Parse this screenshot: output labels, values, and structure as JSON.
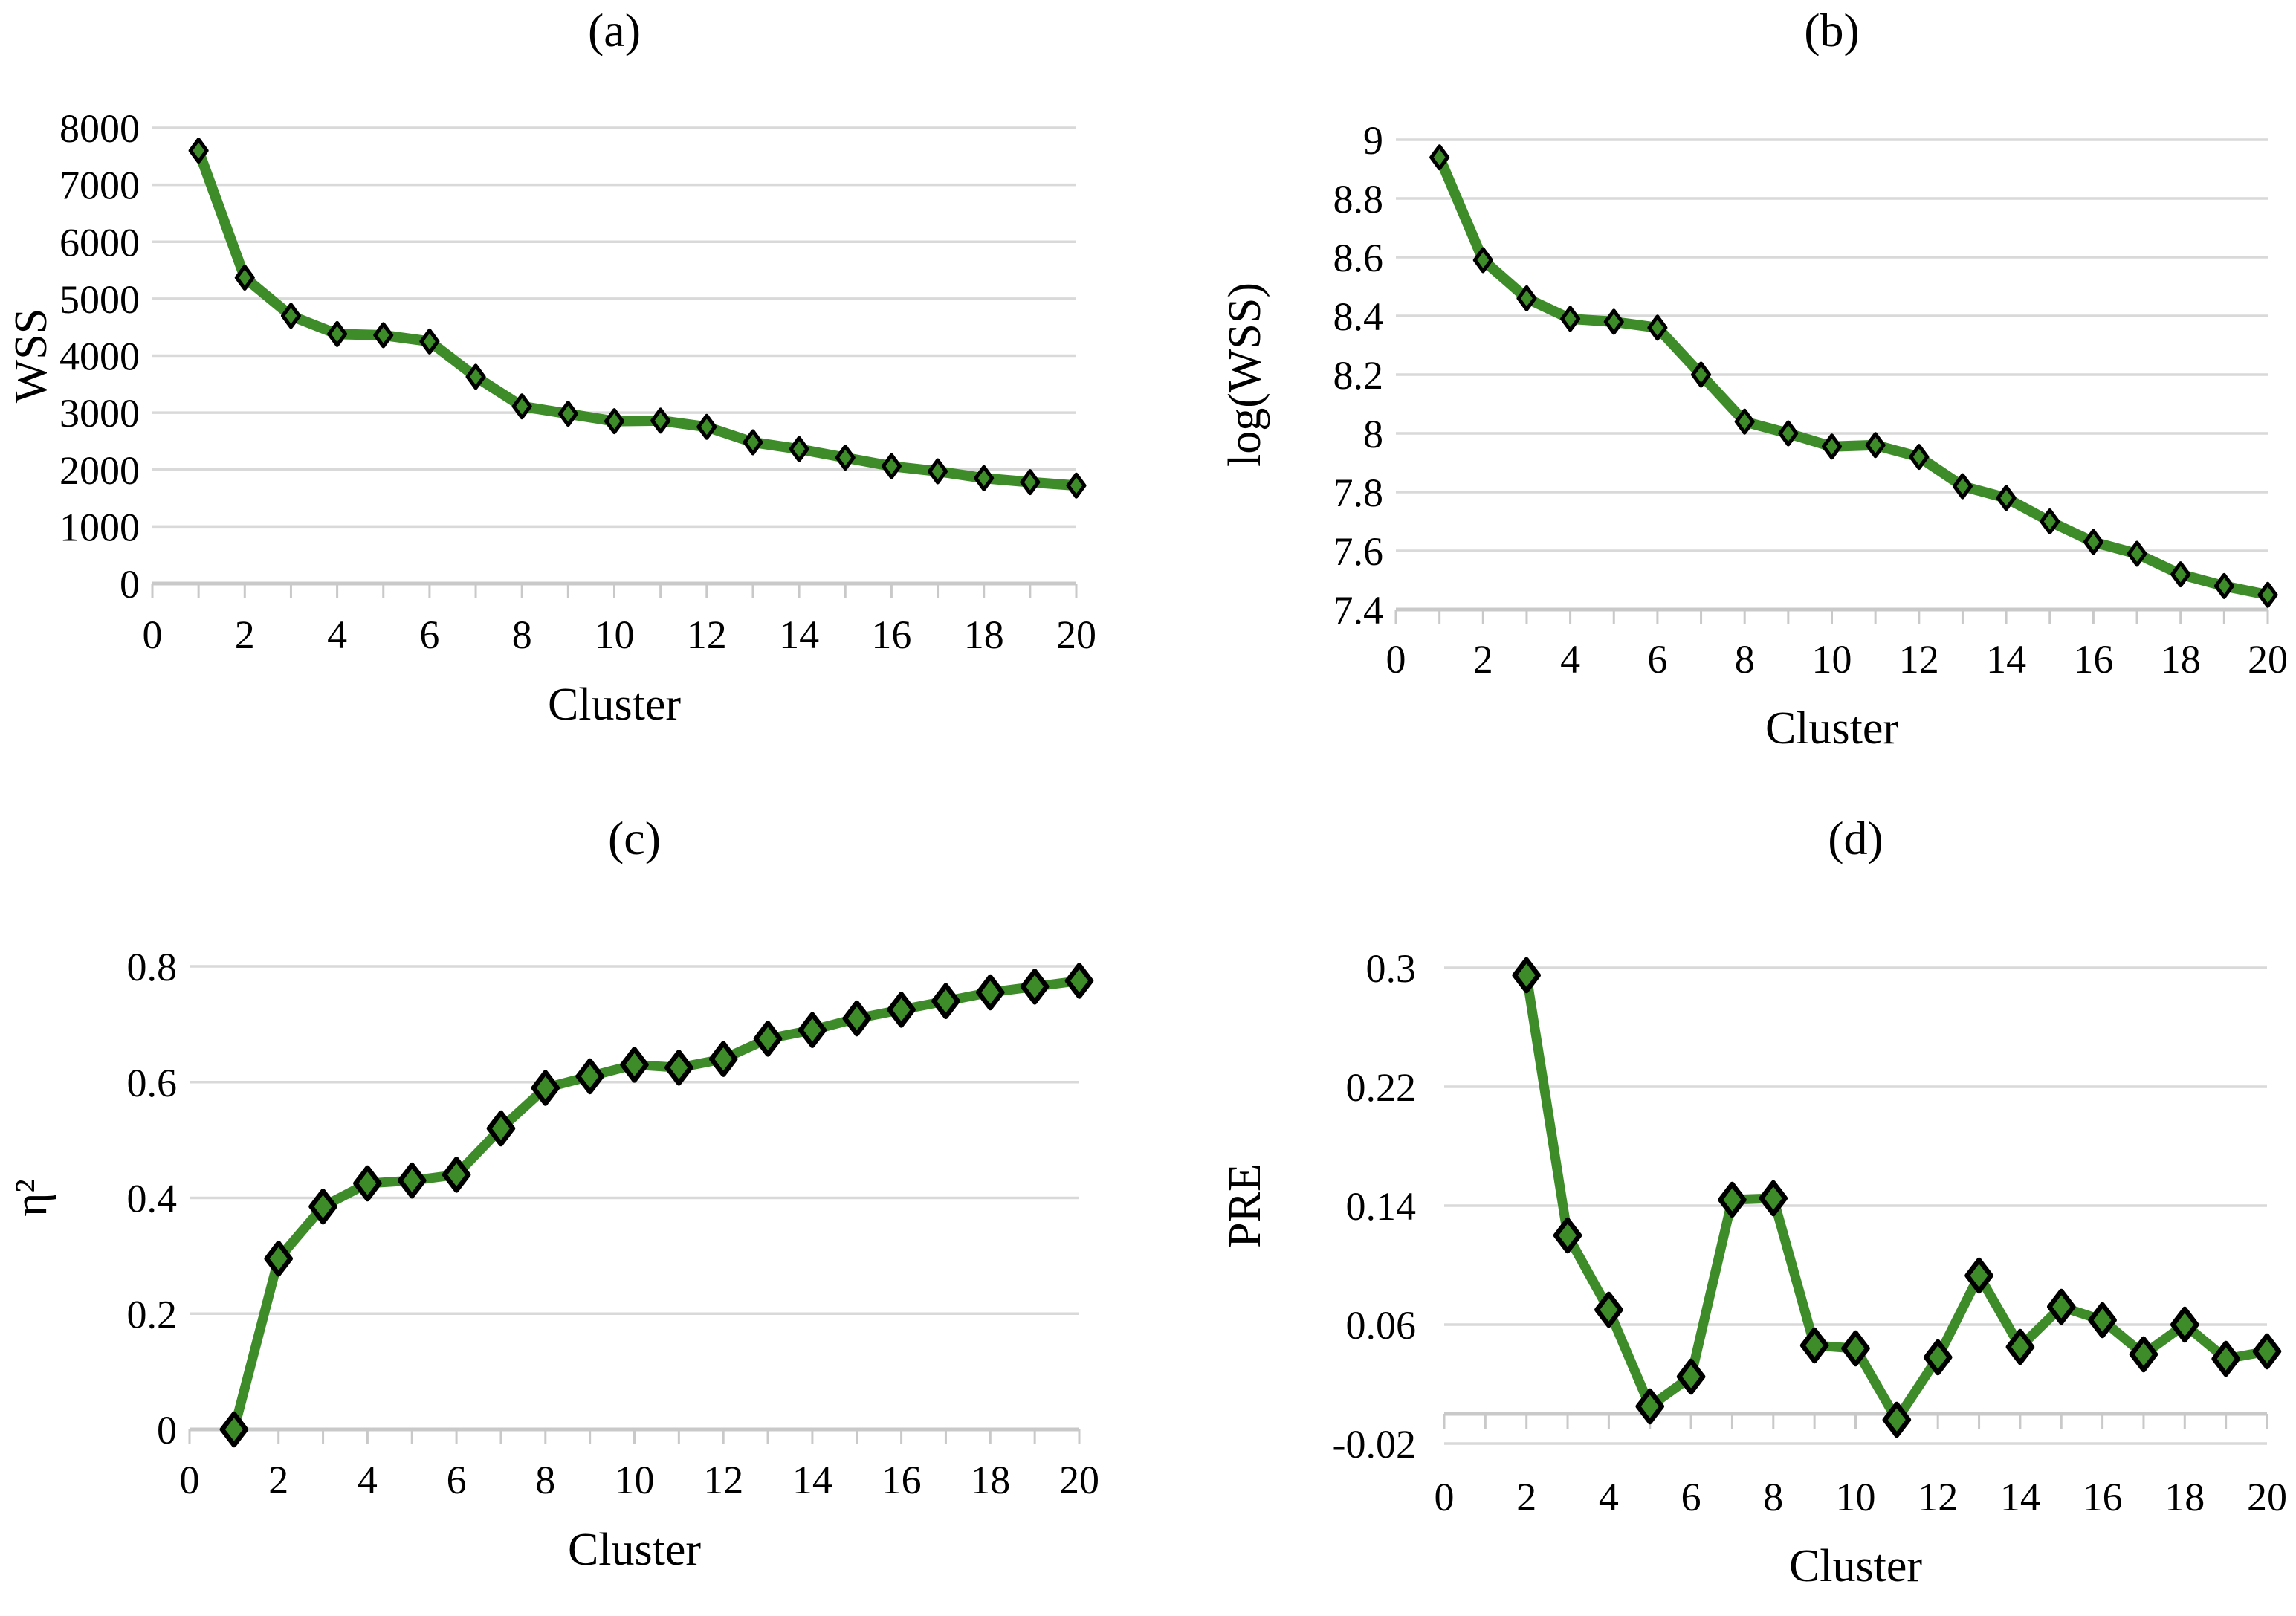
{
  "figure": {
    "background": "#ffffff",
    "line_color": "#3E8C29",
    "marker_fill": "#3E8C29",
    "marker_stroke": "#000000",
    "grid_color": "#D9D9D9",
    "axis_color": "#C9C9C9",
    "text_color": "#000000"
  },
  "chart_data": [
    {
      "type": "line",
      "panel_label": "(a)",
      "xlabel": "Cluster",
      "ylabel": "WSS",
      "legend": "none",
      "grid": true,
      "xlim": [
        0,
        20
      ],
      "ylim": [
        0,
        8000
      ],
      "x": [
        1,
        2,
        3,
        4,
        5,
        6,
        7,
        8,
        9,
        10,
        11,
        12,
        13,
        14,
        15,
        16,
        17,
        18,
        19,
        20
      ],
      "values": [
        7600,
        5370,
        4700,
        4380,
        4360,
        4250,
        3630,
        3110,
        2980,
        2850,
        2860,
        2750,
        2480,
        2360,
        2210,
        2060,
        1970,
        1850,
        1780,
        1720
      ],
      "yticks": [
        {
          "v": 0,
          "label": "0"
        },
        {
          "v": 1000,
          "label": "1000"
        },
        {
          "v": 2000,
          "label": "2000"
        },
        {
          "v": 3000,
          "label": "3000"
        },
        {
          "v": 4000,
          "label": "4000"
        },
        {
          "v": 5000,
          "label": "5000"
        },
        {
          "v": 6000,
          "label": "6000"
        },
        {
          "v": 7000,
          "label": "7000"
        },
        {
          "v": 8000,
          "label": "8000"
        }
      ],
      "xticks": [
        {
          "v": 0,
          "label": "0"
        },
        {
          "v": 2,
          "label": "2"
        },
        {
          "v": 4,
          "label": "4"
        },
        {
          "v": 6,
          "label": "6"
        },
        {
          "v": 8,
          "label": "8"
        },
        {
          "v": 10,
          "label": "10"
        },
        {
          "v": 12,
          "label": "12"
        },
        {
          "v": 14,
          "label": "14"
        },
        {
          "v": 16,
          "label": "16"
        },
        {
          "v": 18,
          "label": "18"
        },
        {
          "v": 20,
          "label": "20"
        }
      ],
      "minor_xtick_step": 1
    },
    {
      "type": "line",
      "panel_label": "(b)",
      "xlabel": "Cluster",
      "ylabel": "log(WSS)",
      "legend": "none",
      "grid": true,
      "xlim": [
        0,
        20
      ],
      "ylim": [
        7.4,
        9
      ],
      "x": [
        1,
        2,
        3,
        4,
        5,
        6,
        7,
        8,
        9,
        10,
        11,
        12,
        13,
        14,
        15,
        16,
        17,
        18,
        19,
        20
      ],
      "values": [
        8.94,
        8.59,
        8.46,
        8.39,
        8.38,
        8.36,
        8.2,
        8.04,
        8.0,
        7.955,
        7.96,
        7.92,
        7.82,
        7.78,
        7.7,
        7.63,
        7.59,
        7.52,
        7.48,
        7.45
      ],
      "yticks": [
        {
          "v": 7.4,
          "label": "7.4"
        },
        {
          "v": 7.6,
          "label": "7.6"
        },
        {
          "v": 7.8,
          "label": "7.8"
        },
        {
          "v": 8,
          "label": "8"
        },
        {
          "v": 8.2,
          "label": "8.2"
        },
        {
          "v": 8.4,
          "label": "8.4"
        },
        {
          "v": 8.6,
          "label": "8.6"
        },
        {
          "v": 8.8,
          "label": "8.8"
        },
        {
          "v": 9,
          "label": "9"
        }
      ],
      "xticks": [
        {
          "v": 0,
          "label": "0"
        },
        {
          "v": 2,
          "label": "2"
        },
        {
          "v": 4,
          "label": "4"
        },
        {
          "v": 6,
          "label": "6"
        },
        {
          "v": 8,
          "label": "8"
        },
        {
          "v": 10,
          "label": "10"
        },
        {
          "v": 12,
          "label": "12"
        },
        {
          "v": 14,
          "label": "14"
        },
        {
          "v": 16,
          "label": "16"
        },
        {
          "v": 18,
          "label": "18"
        },
        {
          "v": 20,
          "label": "20"
        }
      ],
      "minor_xtick_step": 1
    },
    {
      "type": "line",
      "panel_label": "(c)",
      "xlabel": "Cluster",
      "ylabel": "η²",
      "legend": "none",
      "grid": true,
      "xlim": [
        0,
        20
      ],
      "ylim": [
        0,
        0.8
      ],
      "x": [
        1,
        2,
        3,
        4,
        5,
        6,
        7,
        8,
        9,
        10,
        11,
        12,
        13,
        14,
        15,
        16,
        17,
        18,
        19,
        20
      ],
      "values": [
        0,
        0.295,
        0.385,
        0.425,
        0.43,
        0.44,
        0.52,
        0.59,
        0.61,
        0.63,
        0.625,
        0.64,
        0.675,
        0.69,
        0.71,
        0.725,
        0.74,
        0.755,
        0.765,
        0.775
      ],
      "yticks": [
        {
          "v": 0,
          "label": "0"
        },
        {
          "v": 0.2,
          "label": "0.2"
        },
        {
          "v": 0.4,
          "label": "0.4"
        },
        {
          "v": 0.6,
          "label": "0.6"
        },
        {
          "v": 0.8,
          "label": "0.8"
        }
      ],
      "xticks": [
        {
          "v": 0,
          "label": "0"
        },
        {
          "v": 2,
          "label": "2"
        },
        {
          "v": 4,
          "label": "4"
        },
        {
          "v": 6,
          "label": "6"
        },
        {
          "v": 8,
          "label": "8"
        },
        {
          "v": 10,
          "label": "10"
        },
        {
          "v": 12,
          "label": "12"
        },
        {
          "v": 14,
          "label": "14"
        },
        {
          "v": 16,
          "label": "16"
        },
        {
          "v": 18,
          "label": "18"
        },
        {
          "v": 20,
          "label": "20"
        }
      ],
      "minor_xtick_step": 1
    },
    {
      "type": "line",
      "panel_label": "(d)",
      "xlabel": "Cluster",
      "ylabel": "PRE",
      "legend": "none",
      "grid": true,
      "xlim": [
        0,
        20
      ],
      "ylim": [
        -0.02,
        0.3
      ],
      "axis_cross_y": 0,
      "x": [
        2,
        3,
        4,
        5,
        6,
        7,
        8,
        9,
        10,
        11,
        12,
        13,
        14,
        15,
        16,
        17,
        18,
        19,
        20
      ],
      "values": [
        0.295,
        0.12,
        0.07,
        0.005,
        0.025,
        0.144,
        0.145,
        0.046,
        0.044,
        -0.004,
        0.038,
        0.093,
        0.045,
        0.072,
        0.063,
        0.04,
        0.06,
        0.037,
        0.042
      ],
      "yticks": [
        {
          "v": -0.02,
          "label": "-0.02"
        },
        {
          "v": 0.06,
          "label": "0.06"
        },
        {
          "v": 0.14,
          "label": "0.14"
        },
        {
          "v": 0.22,
          "label": "0.22"
        },
        {
          "v": 0.3,
          "label": "0.3"
        }
      ],
      "xticks": [
        {
          "v": 0,
          "label": "0"
        },
        {
          "v": 2,
          "label": "2"
        },
        {
          "v": 4,
          "label": "4"
        },
        {
          "v": 6,
          "label": "6"
        },
        {
          "v": 8,
          "label": "8"
        },
        {
          "v": 10,
          "label": "10"
        },
        {
          "v": 12,
          "label": "12"
        },
        {
          "v": 14,
          "label": "14"
        },
        {
          "v": 16,
          "label": "16"
        },
        {
          "v": 18,
          "label": "18"
        },
        {
          "v": 20,
          "label": "20"
        }
      ],
      "minor_xtick_step": 1
    }
  ]
}
